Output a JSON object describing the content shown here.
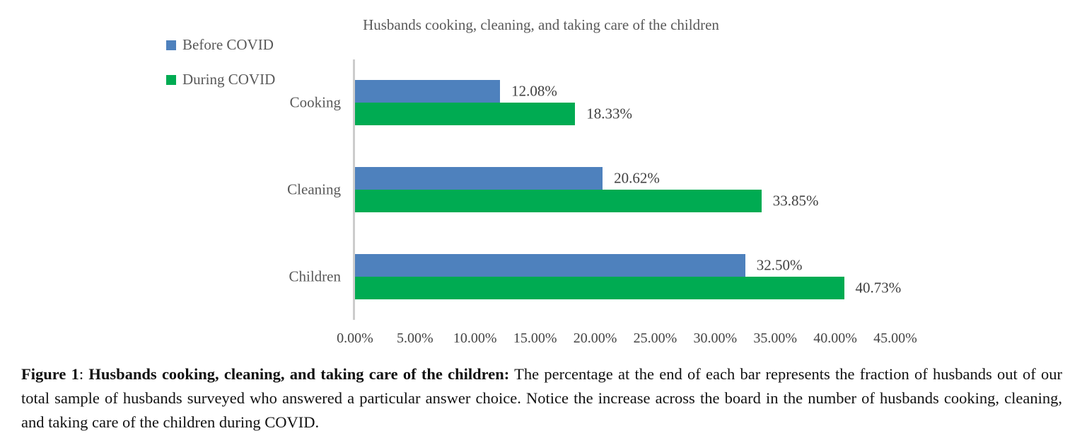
{
  "chart_data": {
    "type": "bar",
    "orientation": "horizontal",
    "title": "Husbands cooking, cleaning, and taking care of the children",
    "xlabel": "",
    "ylabel": "",
    "categories": [
      "Cooking",
      "Cleaning",
      "Children"
    ],
    "series": [
      {
        "name": "Before COVID",
        "color": "#4e81bd",
        "values": [
          12.08,
          20.62,
          32.5
        ],
        "labels": [
          "12.08%",
          "20.62%",
          "32.50%"
        ]
      },
      {
        "name": "During COVID",
        "color": "#00ab52",
        "values": [
          18.33,
          33.85,
          40.73
        ],
        "labels": [
          "18.33%",
          "33.85%",
          "40.73%"
        ]
      }
    ],
    "xlim": [
      0,
      45
    ],
    "x_ticks": [
      "0.00%",
      "5.00%",
      "10.00%",
      "15.00%",
      "20.00%",
      "25.00%",
      "30.00%",
      "35.00%",
      "40.00%",
      "45.00%"
    ],
    "grid": false,
    "legend_position": "top-left",
    "axis_color": "#cccccc"
  },
  "caption": {
    "figure_label": "Figure 1",
    "separator": ": ",
    "title_bold": "Husbands cooking, cleaning, and taking care of the children:",
    "body": " The percentage at the end of each bar represents the fraction of husbands out of our total sample of husbands surveyed who answered a particular answer choice. Notice the increase across the board in the number of husbands cooking, cleaning, and taking care of the children during COVID."
  }
}
